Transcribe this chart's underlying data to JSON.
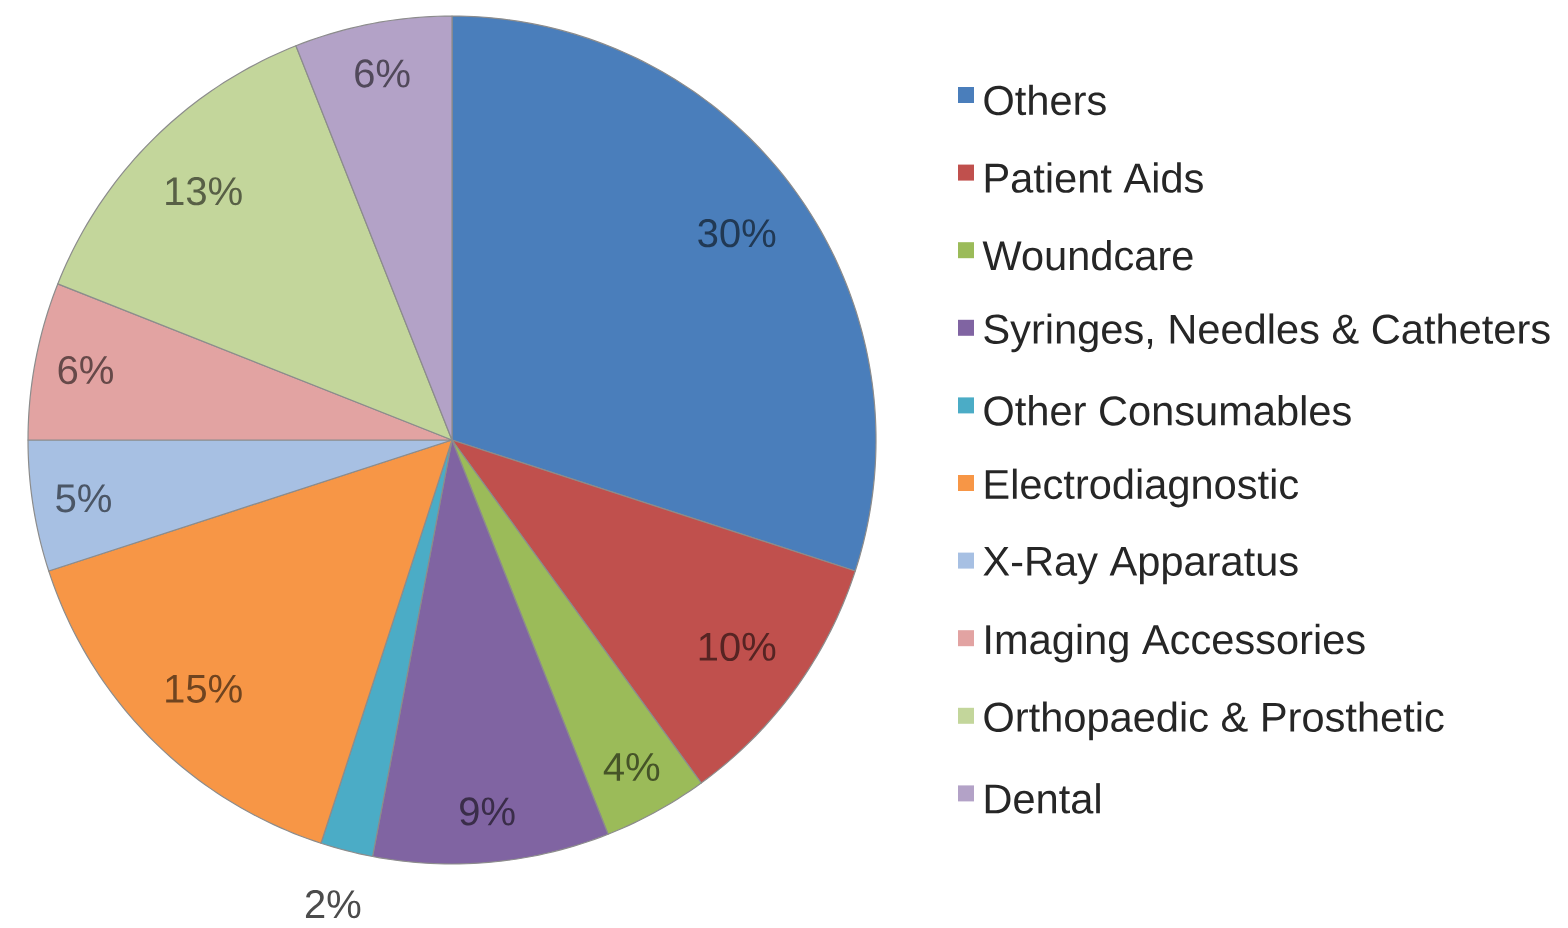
{
  "chart_data": {
    "type": "pie",
    "categories": [
      "Others",
      "Patient Aids",
      "Woundcare",
      "Syringes, Needles & Catheters",
      "Other Consumables",
      "Electrodiagnostic",
      "X-Ray Apparatus",
      "Imaging Accessories",
      "Orthopaedic & Prosthetic",
      "Dental"
    ],
    "values": [
      30,
      10,
      4,
      9,
      2,
      15,
      5,
      6,
      13,
      6
    ],
    "value_labels": [
      "30%",
      "10%",
      "4%",
      "9%",
      "2%",
      "15%",
      "5%",
      "6%",
      "13%",
      "6%"
    ],
    "colors": [
      "#4a7ebb",
      "#c0504d",
      "#9bbb59",
      "#8064a2",
      "#4bacc6",
      "#f79646",
      "#a7c0e3",
      "#e2a3a2",
      "#c3d69b",
      "#b3a2c7"
    ],
    "legend": "right"
  }
}
